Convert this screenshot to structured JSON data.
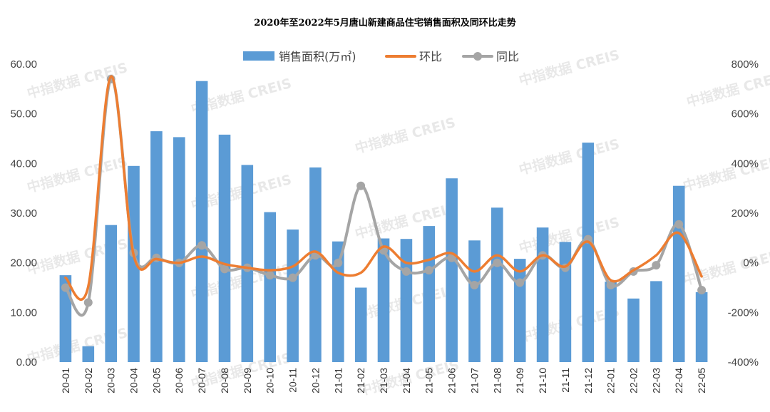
{
  "chart_data": {
    "type": "bar",
    "title": "2020年至2022年5月唐山新建商品住宅销售面积及同环比走势",
    "categories": [
      "20-01",
      "20-02",
      "20-03",
      "20-04",
      "20-05",
      "20-06",
      "20-07",
      "20-08",
      "20-09",
      "20-10",
      "20-11",
      "20-12",
      "21-01",
      "21-02",
      "21-03",
      "21-04",
      "21-05",
      "21-06",
      "21-07",
      "21-08",
      "21-09",
      "21-10",
      "21-11",
      "21-12",
      "22-01",
      "22-02",
      "22-03",
      "22-04",
      "22-05"
    ],
    "left_axis": {
      "ylim": [
        0,
        60
      ],
      "ticks": [
        "0.00",
        "10.00",
        "20.00",
        "30.00",
        "40.00",
        "50.00",
        "60.00"
      ]
    },
    "right_axis": {
      "ylim": [
        -400,
        800
      ],
      "ticks": [
        "-400%",
        "-200%",
        "0%",
        "200%",
        "400%",
        "600%",
        "800%"
      ]
    },
    "grid": false,
    "legend_position": "top",
    "series": [
      {
        "name": "销售面积(万㎡)",
        "kind": "bar",
        "axis": "left",
        "color": "#5b9bd5",
        "values": [
          17.5,
          3.2,
          27.6,
          39.5,
          46.5,
          45.3,
          56.6,
          45.8,
          39.7,
          30.2,
          26.7,
          39.2,
          24.3,
          15.0,
          24.9,
          24.8,
          27.4,
          37.0,
          24.5,
          31.1,
          20.8,
          27.1,
          24.2,
          44.2,
          16.2,
          12.8,
          16.3,
          35.5,
          14.1
        ]
      },
      {
        "name": "环比",
        "kind": "line",
        "axis": "right",
        "color": "#ed7d31",
        "values": [
          -60,
          -95,
          750,
          30,
          15,
          0,
          25,
          -5,
          -20,
          -30,
          -15,
          45,
          -40,
          -40,
          65,
          0,
          12,
          38,
          -35,
          30,
          -35,
          30,
          -15,
          85,
          -70,
          -30,
          30,
          120,
          -55
        ]
      },
      {
        "name": "同比",
        "kind": "line",
        "axis": "right",
        "color": "#a5a5a5",
        "values": [
          -100,
          -160,
          740,
          40,
          20,
          0,
          70,
          -25,
          -20,
          -50,
          -60,
          30,
          0,
          310,
          50,
          -35,
          -30,
          20,
          -90,
          0,
          -80,
          30,
          -20,
          95,
          -90,
          -35,
          -10,
          155,
          -110
        ]
      }
    ],
    "watermark": "中指数据 CREIS"
  }
}
